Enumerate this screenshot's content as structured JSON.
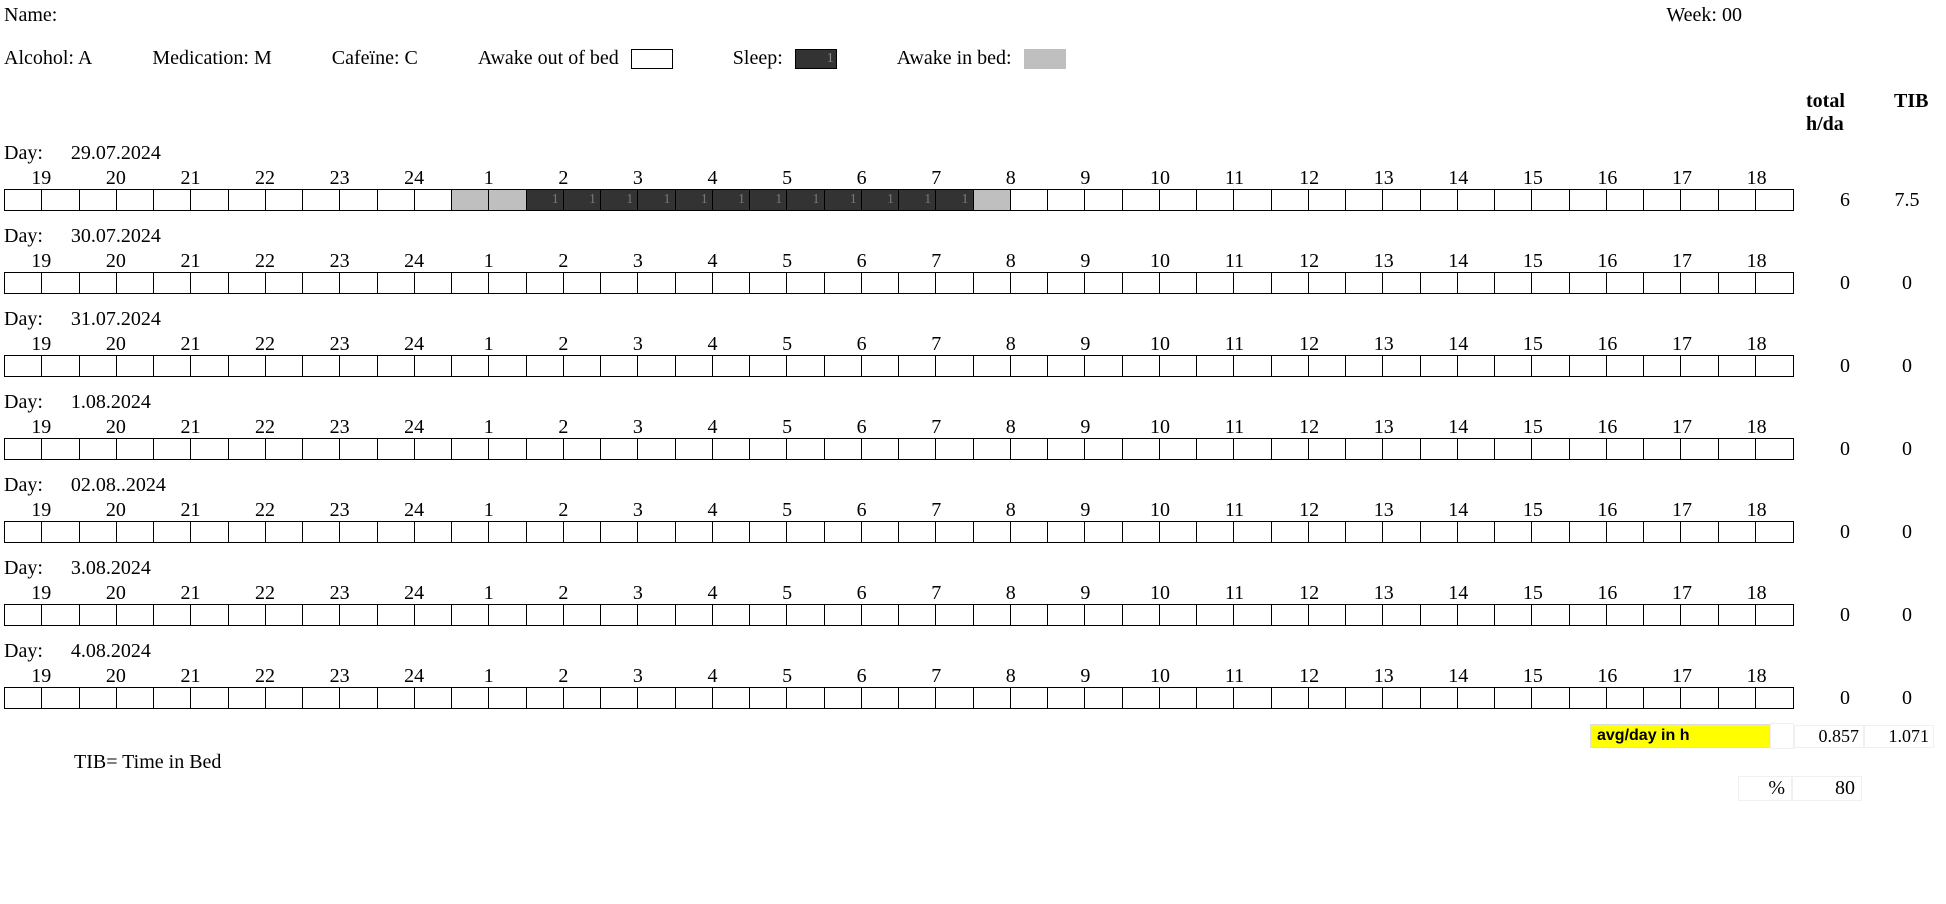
{
  "header": {
    "name_label": "Name:",
    "week_label": "Week: 00"
  },
  "legend": {
    "alcohol": "Alcohol: A",
    "medication": "Medication: M",
    "caffeine": "Cafeïne: C",
    "awake_out": "Awake out of bed",
    "sleep_label": "Sleep:",
    "awake_in_label": "Awake in bed:",
    "awake_out_color": "#ffffff",
    "sleep_color": "#333333",
    "awake_in_color": "#bfbfbf",
    "sleep_swatch_text": "1"
  },
  "totals_header": {
    "col1": "total h/da",
    "col2": "TIB"
  },
  "hours": [
    19,
    20,
    21,
    22,
    23,
    24,
    1,
    2,
    3,
    4,
    5,
    6,
    7,
    8,
    9,
    10,
    11,
    12,
    13,
    14,
    15,
    16,
    17,
    18
  ],
  "days": [
    {
      "label": "Day:",
      "date": "29.07.2024",
      "total_h": "6",
      "tib": "7.5",
      "cells": [
        0,
        0,
        0,
        0,
        0,
        0,
        0,
        0,
        0,
        0,
        0,
        0,
        2,
        2,
        1,
        1,
        1,
        1,
        1,
        1,
        1,
        1,
        1,
        1,
        1,
        1,
        2,
        0,
        0,
        0,
        0,
        0,
        0,
        0,
        0,
        0,
        0,
        0,
        0,
        0,
        0,
        0,
        0,
        0,
        0,
        0,
        0,
        0
      ],
      "cell_text_on_sleep": "1"
    },
    {
      "label": "Day:",
      "date": "30.07.2024",
      "total_h": "0",
      "tib": "0",
      "cells": []
    },
    {
      "label": "Day:",
      "date": "31.07.2024",
      "total_h": "0",
      "tib": "0",
      "cells": []
    },
    {
      "label": "Day:",
      "date": "1.08.2024",
      "total_h": "0",
      "tib": "0",
      "cells": []
    },
    {
      "label": "Day:",
      "date": "02.08..2024",
      "total_h": "0",
      "tib": "0",
      "cells": []
    },
    {
      "label": "Day:",
      "date": "3.08.2024",
      "total_h": "0",
      "tib": "0",
      "cells": []
    },
    {
      "label": "Day:",
      "date": "4.08.2024",
      "total_h": "0",
      "tib": "0",
      "cells": []
    }
  ],
  "footer": {
    "avg_label": "avg/day in h",
    "avg_total": "0.857",
    "avg_tib": "1.071",
    "tib_note": "TIB= Time in Bed",
    "pct_label": "%",
    "pct_value": "80"
  },
  "colors": {
    "sleep": "#333333",
    "awake_in_bed": "#bfbfbf",
    "awake_out_bed": "#ffffff",
    "highlight": "#ffff00"
  }
}
